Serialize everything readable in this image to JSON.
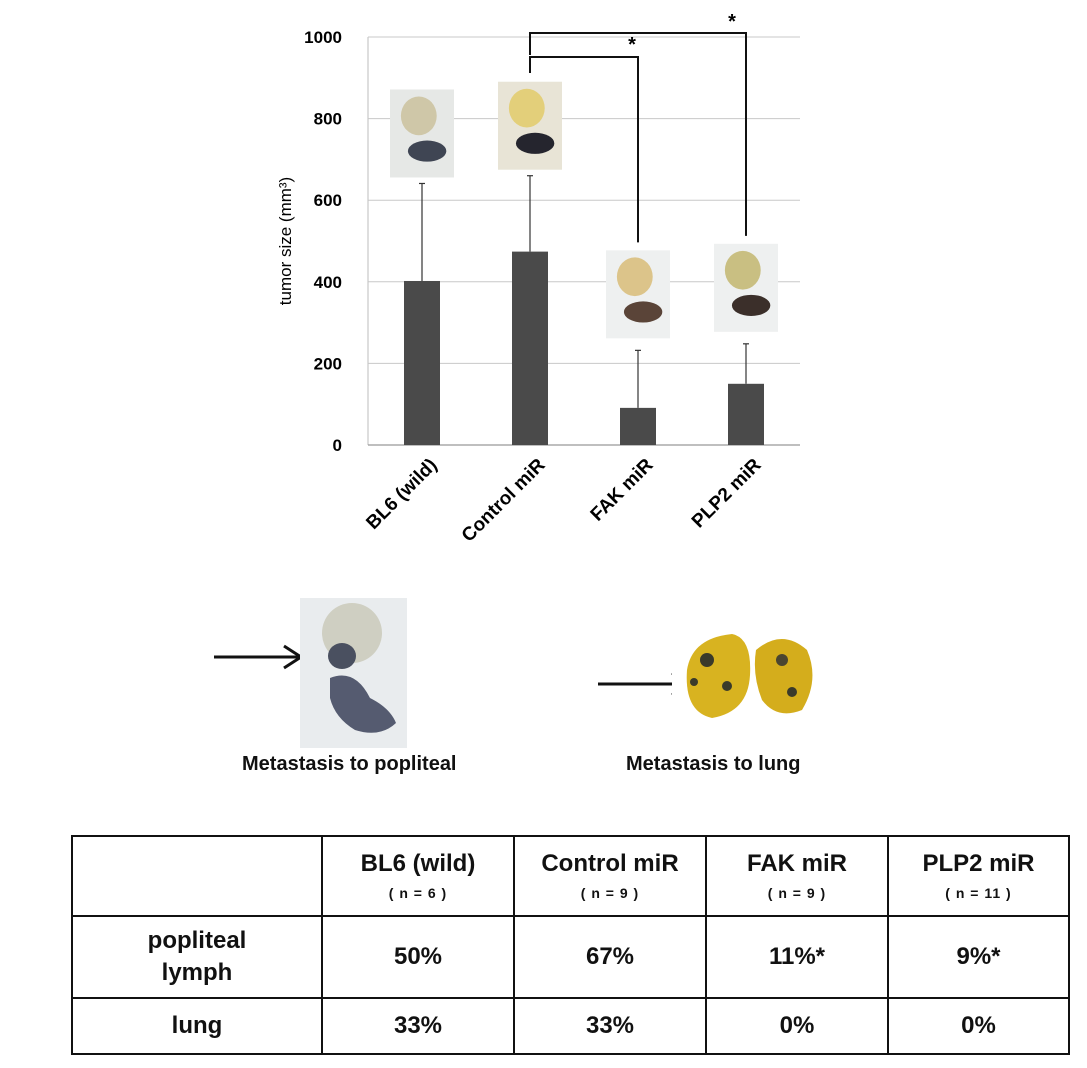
{
  "chart_data": {
    "type": "bar",
    "title": "",
    "ylabel": "tumor size (mm³)",
    "categories": [
      "BL6 (wild)",
      "Control miR",
      "FAK miR",
      "PLP2 miR"
    ],
    "values": [
      402,
      474,
      91,
      150
    ],
    "error_upper": [
      641,
      660,
      232,
      248
    ],
    "ylim": [
      0,
      1000
    ],
    "yticks": [
      "0",
      "200",
      "400",
      "600",
      "800",
      "1000"
    ],
    "grid": true,
    "bar_color": "#4a4a4a",
    "significance_marks": [
      "*",
      "*"
    ],
    "significance_pairs": [
      [
        "Control miR",
        "FAK miR"
      ],
      [
        "Control miR",
        "PLP2 miR"
      ]
    ]
  },
  "photos": {
    "bar_photos": [
      "tumor-photo-bl6",
      "tumor-photo-control",
      "tumor-photo-fak",
      "tumor-photo-plp2"
    ],
    "popliteal_caption": "Metastasis to popliteal",
    "lung_caption": "Metastasis to lung"
  },
  "table": {
    "columns": [
      {
        "name": "BL6 (wild)",
        "n": "( n = 6 )"
      },
      {
        "name": "Control miR",
        "n": "( n = 9 )"
      },
      {
        "name": "FAK miR",
        "n": "( n = 9 )"
      },
      {
        "name": "PLP2 miR",
        "n": "( n = 11 )"
      }
    ],
    "rows": [
      {
        "label_line1": "popliteal",
        "label_line2": "lymph",
        "values": [
          "50%",
          "67%",
          "11%*",
          "9%*"
        ]
      },
      {
        "label_line1": "lung",
        "label_line2": "",
        "values": [
          "33%",
          "33%",
          "0%",
          "0%"
        ]
      }
    ]
  }
}
